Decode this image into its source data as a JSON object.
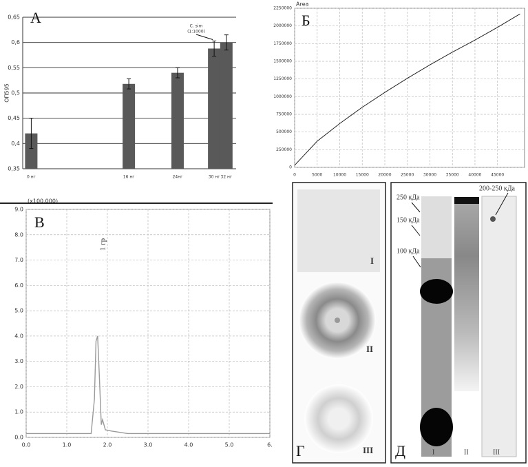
{
  "chart_data": [
    {
      "type": "bar",
      "panel_label": "А",
      "y_label": "ОП595",
      "annotation": [
        "С. sim",
        "(1:1000)"
      ],
      "x": [
        0,
        16,
        24,
        30,
        32
      ],
      "values": [
        0.42,
        0.518,
        0.54,
        0.588,
        0.6
      ],
      "errors": [
        0.03,
        0.01,
        0.01,
        0.015,
        0.015
      ],
      "color": "#595959",
      "grid": true,
      "xlim": [
        -1.4,
        33.6
      ],
      "xticks": [
        {
          "value": 0,
          "label": "0 нг"
        },
        {
          "value": 16,
          "label": "16 нг"
        },
        {
          "value": 24,
          "label": "24нг"
        },
        {
          "value": 30,
          "label": "30 нг"
        },
        {
          "value": 32,
          "label": "32 нг"
        }
      ],
      "ylim": [
        0.35,
        0.65
      ],
      "yticks": [
        {
          "value": 0.35,
          "label": "0,35"
        },
        {
          "value": 0.4,
          "label": "0,4"
        },
        {
          "value": 0.45,
          "label": "0,45"
        },
        {
          "value": 0.5,
          "label": "0,5"
        },
        {
          "value": 0.55,
          "label": "0,55"
        },
        {
          "value": 0.6,
          "label": "0,6"
        },
        {
          "value": 0.65,
          "label": "0,65"
        }
      ]
    },
    {
      "type": "line",
      "panel_label": "Б",
      "y_label": "Area",
      "grid": true,
      "x": [
        0,
        5000,
        10000,
        15000,
        20000,
        25000,
        30000,
        35000,
        40000,
        45000,
        50000
      ],
      "series": [
        {
          "color": "#222222",
          "values": [
            30000,
            370000,
            620000,
            850000,
            1060000,
            1260000,
            1450000,
            1630000,
            1800000,
            1980000,
            2170000
          ]
        }
      ],
      "xlim": [
        0,
        51000
      ],
      "xticks": [
        0,
        5000,
        10000,
        15000,
        20000,
        25000,
        30000,
        35000,
        40000,
        45000
      ],
      "ylim": [
        0,
        2250000
      ],
      "yticks": [
        0,
        250000,
        500000,
        750000,
        1000000,
        1250000,
        1500000,
        1750000,
        2000000,
        2250000
      ]
    },
    {
      "type": "line",
      "panel_label": "В",
      "y_label": "(x100,000)",
      "annotation": "1 гр",
      "grid": true,
      "x": [
        0,
        1.6,
        1.68,
        1.72,
        1.76,
        1.8,
        1.85,
        1.88,
        1.95,
        2.1,
        2.5,
        6
      ],
      "series": [
        {
          "color": "#9a9a9a",
          "values": [
            0.15,
            0.15,
            1.5,
            3.8,
            4.0,
            2.5,
            0.5,
            0.7,
            0.3,
            0.25,
            0.15,
            0.15
          ]
        }
      ],
      "xlim": [
        0,
        6
      ],
      "xticks": [
        {
          "value": 0,
          "label": "0.0"
        },
        {
          "value": 1,
          "label": "1.0"
        },
        {
          "value": 2,
          "label": "2.0"
        },
        {
          "value": 3,
          "label": "3.0"
        },
        {
          "value": 4,
          "label": "4.0"
        },
        {
          "value": 5,
          "label": "5.0"
        },
        {
          "value": 6,
          "label": "6."
        }
      ],
      "ylim": [
        0,
        9
      ],
      "yticks": [
        {
          "value": 0,
          "label": "0.0"
        },
        {
          "value": 1,
          "label": "1.0"
        },
        {
          "value": 2,
          "label": "2.0"
        },
        {
          "value": 3,
          "label": "3.0"
        },
        {
          "value": 4,
          "label": "4.0"
        },
        {
          "value": 5,
          "label": "5.0"
        },
        {
          "value": 6,
          "label": "6.0"
        },
        {
          "value": 7,
          "label": "7.0"
        },
        {
          "value": 8,
          "label": "8.0"
        },
        {
          "value": 9,
          "label": "9.0"
        }
      ]
    }
  ],
  "panels": {
    "g": {
      "letter": "Г",
      "labels": [
        "I",
        "II",
        "III"
      ]
    },
    "d": {
      "letter": "Д",
      "markers": [
        "250 кДа",
        "150 кДа",
        "100 кДа"
      ],
      "marker_top": "200-250 кДа",
      "lanes": [
        "I",
        "II",
        "III"
      ]
    }
  }
}
